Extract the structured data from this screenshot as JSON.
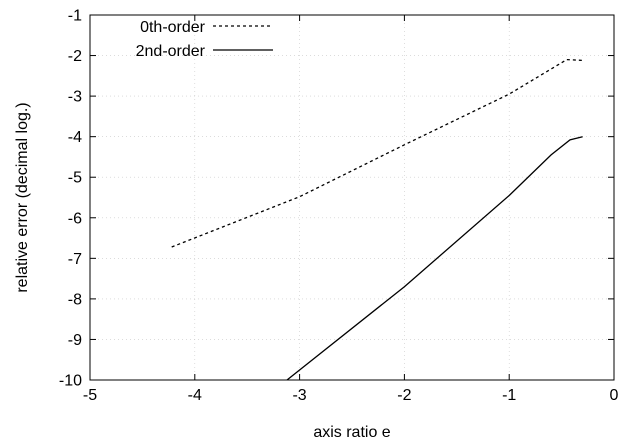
{
  "chart_data": {
    "type": "line",
    "title": "",
    "xlabel": "axis ratio e",
    "ylabel": "relative error (decimal log.)",
    "xlim": [
      -5,
      0
    ],
    "ylim": [
      -10,
      -1
    ],
    "xticks": [
      -5,
      -4,
      -3,
      -2,
      -1,
      0
    ],
    "yticks": [
      -1,
      -2,
      -3,
      -4,
      -5,
      -6,
      -7,
      -8,
      -9,
      -10
    ],
    "grid": true,
    "legend_position": "top-left",
    "series": [
      {
        "name": "0th-order",
        "style": "dotted",
        "color": "#000000",
        "points": [
          [
            -4.22,
            -6.72
          ],
          [
            -3.0,
            -5.48
          ],
          [
            -2.0,
            -4.2
          ],
          [
            -1.0,
            -2.95
          ],
          [
            -0.45,
            -2.1
          ],
          [
            -0.3,
            -2.12
          ]
        ]
      },
      {
        "name": "2nd-order",
        "style": "solid",
        "color": "#000000",
        "points": [
          [
            -3.12,
            -10.0
          ],
          [
            -2.0,
            -7.7
          ],
          [
            -1.0,
            -5.45
          ],
          [
            -0.6,
            -4.45
          ],
          [
            -0.42,
            -4.08
          ],
          [
            -0.3,
            -4.0
          ]
        ]
      }
    ]
  }
}
